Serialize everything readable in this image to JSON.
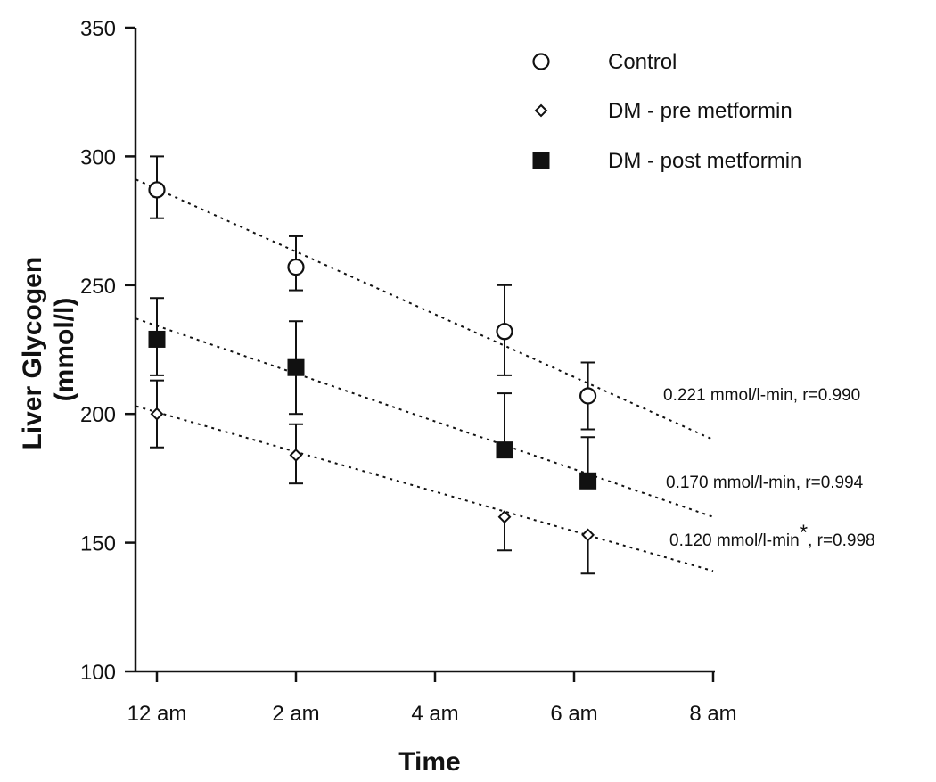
{
  "chart_data": {
    "type": "scatter",
    "xlabel": "Time",
    "ylabel": "Liver Glycogen (mmol/l)",
    "ylabel_lines": [
      "Liver Glycogen",
      "(mmol/l)"
    ],
    "xlim": [
      0,
      8
    ],
    "ylim": [
      100,
      350
    ],
    "x_ticks": [
      {
        "value": 0,
        "label": "12 am"
      },
      {
        "value": 2,
        "label": "2 am"
      },
      {
        "value": 4,
        "label": "4 am"
      },
      {
        "value": 6,
        "label": "6 am"
      },
      {
        "value": 8,
        "label": "8 am"
      }
    ],
    "y_ticks": [
      {
        "value": 100,
        "label": "100"
      },
      {
        "value": 150,
        "label": "150"
      },
      {
        "value": 200,
        "label": "200"
      },
      {
        "value": 250,
        "label": "250"
      },
      {
        "value": 300,
        "label": "300"
      },
      {
        "value": 350,
        "label": "350"
      }
    ],
    "legend_position": "top-right",
    "grid": false,
    "series": [
      {
        "name": "Control",
        "marker": "open-circle",
        "points": [
          {
            "x": 0.0,
            "y": 287,
            "err_low": 276,
            "err_high": 300
          },
          {
            "x": 2.0,
            "y": 257,
            "err_low": 248,
            "err_high": 269
          },
          {
            "x": 5.0,
            "y": 232,
            "err_low": 215,
            "err_high": 250
          },
          {
            "x": 6.2,
            "y": 207,
            "err_low": 194,
            "err_high": 220
          }
        ],
        "fit": {
          "x0": -0.3,
          "y0": 291,
          "x1": 8.0,
          "y1": 190
        },
        "annotation": {
          "text": "0.221 mmol/l-min, r=0.990",
          "star": false,
          "suffix": ""
        }
      },
      {
        "name": "DM - pre metformin",
        "marker": "open-diamond",
        "points": [
          {
            "x": 0.0,
            "y": 200,
            "err_low": 187,
            "err_high": 213
          },
          {
            "x": 2.0,
            "y": 184,
            "err_low": 173,
            "err_high": 196
          },
          {
            "x": 5.0,
            "y": 160,
            "err_low": 147,
            "err_high": 160
          },
          {
            "x": 6.2,
            "y": 153,
            "err_low": 138,
            "err_high": 153
          }
        ],
        "fit": {
          "x0": -0.3,
          "y0": 203,
          "x1": 8.0,
          "y1": 139
        },
        "annotation": {
          "text": "0.120 mmol/l-min",
          "star": true,
          "suffix": ", r=0.998"
        }
      },
      {
        "name": "DM - post metformin",
        "marker": "filled-square",
        "points": [
          {
            "x": 0.0,
            "y": 229,
            "err_low": 215,
            "err_high": 245
          },
          {
            "x": 2.0,
            "y": 218,
            "err_low": 200,
            "err_high": 236
          },
          {
            "x": 5.0,
            "y": 186,
            "err_low": 186,
            "err_high": 208
          },
          {
            "x": 6.2,
            "y": 174,
            "err_low": 174,
            "err_high": 191
          }
        ],
        "fit": {
          "x0": -0.3,
          "y0": 237,
          "x1": 8.0,
          "y1": 160
        },
        "annotation": {
          "text": "0.170 mmol/l-min, r=0.994",
          "star": false,
          "suffix": ""
        }
      }
    ]
  }
}
